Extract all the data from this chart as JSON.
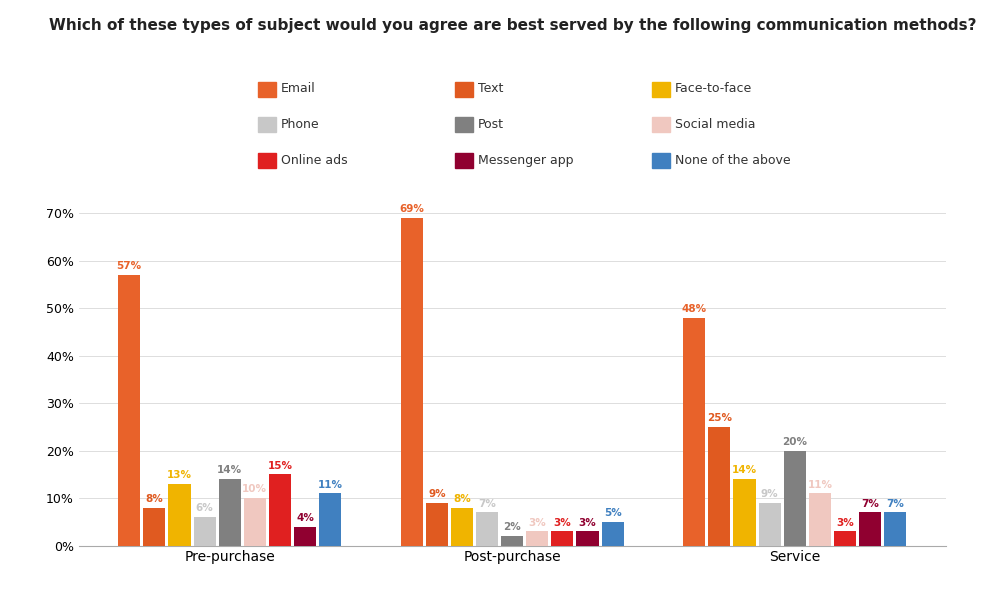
{
  "title": "Which of these types of subject would you agree are best served by the following communication methods?",
  "categories": [
    "Pre-purchase",
    "Post-purchase",
    "Service"
  ],
  "series": [
    {
      "label": "Email",
      "color": "#E8622A",
      "values": [
        57,
        69,
        48
      ]
    },
    {
      "label": "Text",
      "color": "#E05A20",
      "values": [
        8,
        9,
        25
      ]
    },
    {
      "label": "Face-to-face",
      "color": "#F0B400",
      "values": [
        13,
        8,
        14
      ]
    },
    {
      "label": "Phone",
      "color": "#C8C8C8",
      "values": [
        6,
        7,
        9
      ]
    },
    {
      "label": "Post",
      "color": "#808080",
      "values": [
        14,
        2,
        20
      ]
    },
    {
      "label": "Social media",
      "color": "#F0C8C0",
      "values": [
        10,
        3,
        11
      ]
    },
    {
      "label": "Online ads",
      "color": "#E02020",
      "values": [
        15,
        3,
        3
      ]
    },
    {
      "label": "Messenger app",
      "color": "#900030",
      "values": [
        4,
        3,
        7
      ]
    },
    {
      "label": "None of the above",
      "color": "#4080C0",
      "values": [
        11,
        5,
        7
      ]
    }
  ],
  "ylim": [
    0,
    75
  ],
  "yticks": [
    0,
    10,
    20,
    30,
    40,
    50,
    60,
    70
  ],
  "ytick_labels": [
    "0%",
    "10%",
    "20%",
    "30%",
    "40%",
    "50%",
    "60%",
    "70%"
  ],
  "background_color": "#ffffff",
  "title_fontsize": 11,
  "legend_fontsize": 9,
  "bar_label_fontsize": 7.5
}
